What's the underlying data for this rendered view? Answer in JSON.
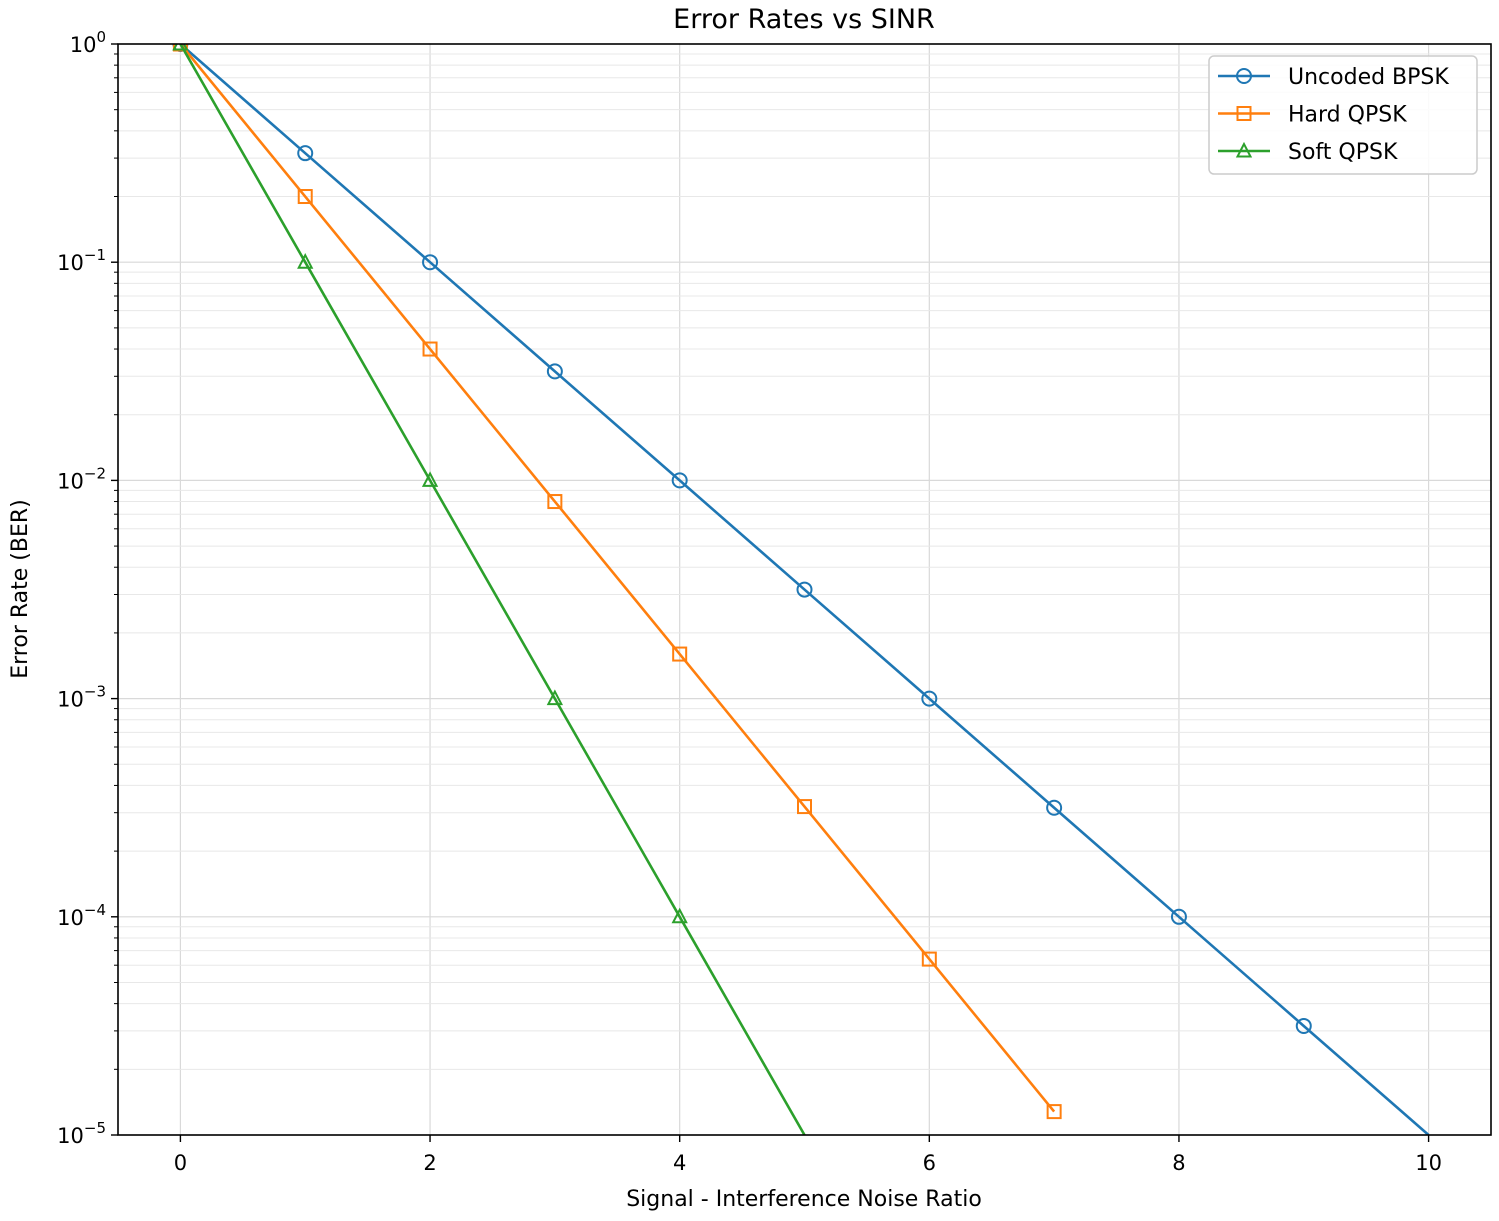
{
  "chart_data": {
    "type": "line",
    "title": "Error Rates vs SINR",
    "xlabel": "Signal - Interference Noise Ratio",
    "ylabel": "Error Rate (BER)",
    "xlim": [
      -0.5,
      10.5
    ],
    "ylim": [
      1e-05,
      1
    ],
    "yscale": "log",
    "grid": true,
    "legend_position": "top-right",
    "x_ticks": [
      0,
      2,
      4,
      6,
      8,
      10
    ],
    "x_tick_labels": [
      "0",
      "2",
      "4",
      "6",
      "8",
      "10"
    ],
    "y_ticks": [
      1,
      0.1,
      0.01,
      0.001,
      0.0001,
      1e-05
    ],
    "y_tick_labels": [
      {
        "base": "10",
        "exp": "0"
      },
      {
        "base": "10",
        "exp": "−1"
      },
      {
        "base": "10",
        "exp": "−2"
      },
      {
        "base": "10",
        "exp": "−3"
      },
      {
        "base": "10",
        "exp": "−4"
      },
      {
        "base": "10",
        "exp": "−5"
      }
    ],
    "series": [
      {
        "name": "Uncoded BPSK",
        "color": "#1f77b4",
        "marker": "circle",
        "x": [
          0,
          1,
          2,
          3,
          4,
          5,
          6,
          7,
          8,
          9,
          10
        ],
        "y": [
          1,
          0.316,
          0.1,
          0.0316,
          0.01,
          0.00316,
          0.001,
          0.000316,
          0.0001,
          3.16e-05,
          1e-05
        ],
        "marked_count": 10
      },
      {
        "name": "Hard QPSK",
        "color": "#ff7f0e",
        "marker": "square",
        "x": [
          0,
          1,
          2,
          3,
          4,
          5,
          6,
          7
        ],
        "y": [
          1,
          0.2,
          0.04,
          0.008,
          0.0016,
          0.00032,
          6.4e-05,
          1.28e-05
        ],
        "marked_count": 8
      },
      {
        "name": "Soft QPSK",
        "color": "#2ca02c",
        "marker": "triangle",
        "x": [
          0,
          1,
          2,
          3,
          4,
          5
        ],
        "y": [
          1,
          0.1,
          0.01,
          0.001,
          0.0001,
          1e-05
        ],
        "marked_count": 5
      }
    ]
  }
}
